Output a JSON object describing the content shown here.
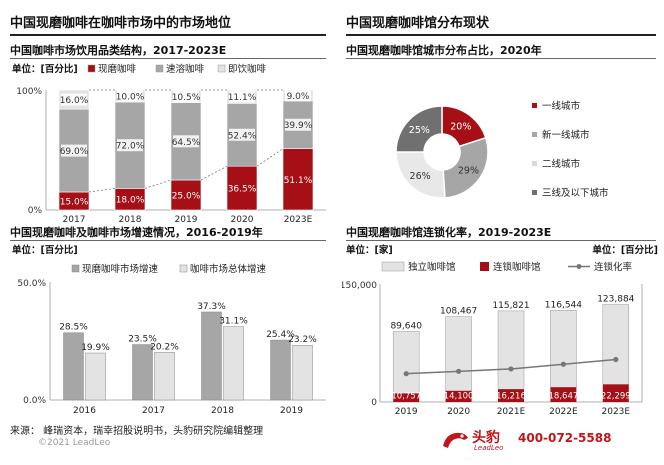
{
  "left": {
    "title": "中国现磨咖啡在咖啡市场中的市场地位",
    "top_subtitle": "中国咖啡市场饮用品类结构，2017-2023E",
    "bottom_subtitle": "中国现磨咖啡及咖啡市场增速情况，2016-2019年"
  },
  "right": {
    "title": "中国现磨咖啡馆分布现状",
    "top_subtitle": "中国现磨咖啡馆城市分布占比，2020年",
    "bottom_subtitle": "中国现磨咖啡馆连锁化率，2019-2023E"
  },
  "footer": {
    "source": "来源： 峰瑞资本，瑞幸招股说明书，头豹研究院编辑整理",
    "copyright": "©2021 LeadLeo",
    "brand_name": "头豹",
    "brand_sub": "LeadLeo",
    "phone": "400-072-5588"
  },
  "colors": {
    "dark_red": "#a50f15",
    "gray": "#a6a6a6",
    "light": "#e3e3e3",
    "dark_gray": "#707070"
  },
  "chart_data": [
    {
      "id": "structure",
      "type": "bar",
      "stacked": true,
      "unit_label": "单位：[百分比]",
      "categories": [
        "2017",
        "2018",
        "2019",
        "2020",
        "2023E"
      ],
      "series": [
        {
          "name": "现磨咖啡",
          "values": [
            15.0,
            18.0,
            25.0,
            36.5,
            51.1
          ],
          "labels": [
            "15.0%",
            "18.0%",
            "25.0%",
            "36.5%",
            "51.1%"
          ],
          "color": "#a50f15"
        },
        {
          "name": "速溶咖啡",
          "values": [
            69.0,
            72.0,
            64.5,
            52.4,
            39.9
          ],
          "labels": [
            "69.0%",
            "72.0%",
            "64.5%",
            "52.4%",
            "39.9%"
          ],
          "color": "#a6a6a6"
        },
        {
          "name": "即饮咖啡",
          "values": [
            16.0,
            10.0,
            10.5,
            11.1,
            9.0
          ],
          "labels": [
            "16.0%",
            "10.0%",
            "10.5%",
            "11.1%",
            "9.0%"
          ],
          "color": "#e3e3e3"
        }
      ],
      "yticks": [
        "0%",
        "100%"
      ],
      "ylim": [
        0,
        100
      ]
    },
    {
      "id": "growth",
      "type": "bar",
      "unit_label": "单位：[百分比]",
      "categories": [
        "2016",
        "2017",
        "2018",
        "2019"
      ],
      "series": [
        {
          "name": "现磨咖啡市场增速",
          "values": [
            28.5,
            23.5,
            37.3,
            25.4
          ],
          "labels": [
            "28.5%",
            "23.5%",
            "37.3%",
            "25.4%"
          ],
          "color": "#a6a6a6"
        },
        {
          "name": "咖啡市场总体增速",
          "values": [
            19.9,
            20.2,
            31.1,
            23.2
          ],
          "labels": [
            "19.9%",
            "20.2%",
            "31.1%",
            "23.2%"
          ],
          "color": "#e3e3e3"
        }
      ],
      "yticks": [
        "0.0%",
        "50.0%"
      ],
      "ylim": [
        0,
        50
      ]
    },
    {
      "id": "city",
      "type": "pie",
      "series": [
        {
          "name": "一线城市",
          "value": 20,
          "label": "20%",
          "color": "#a50f15"
        },
        {
          "name": "新一线城市",
          "value": 29,
          "label": "29%",
          "color": "#a6a6a6"
        },
        {
          "name": "二线城市",
          "value": 26,
          "label": "26%",
          "color": "#e8e8e8"
        },
        {
          "name": "三线及以下城市",
          "value": 25,
          "label": "25%",
          "color": "#707070"
        }
      ]
    },
    {
      "id": "chain",
      "type": "bar",
      "stacked": true,
      "unit_left": "单位：[家]",
      "unit_right": "单位：[百分比]",
      "categories": [
        "2019",
        "2020",
        "2021E",
        "2022E",
        "2023E"
      ],
      "series": [
        {
          "name": "独立咖啡馆",
          "values": [
            78883,
            94367,
            99605,
            97897,
            101585
          ],
          "color": "#e3e3e3"
        },
        {
          "name": "连锁咖啡馆",
          "values": [
            10757,
            14100,
            16216,
            18647,
            22299
          ],
          "labels": [
            "10,757",
            "14,100",
            "16,216",
            "18,647",
            "22,299"
          ],
          "color": "#a50f15"
        },
        {
          "name": "连锁化率",
          "type": "line",
          "values": [
            12.0,
            13.0,
            14.0,
            16.0,
            18.0
          ],
          "color": "#777777"
        }
      ],
      "totals": [
        "89,640",
        "108,467",
        "115,821",
        "116,544",
        "123,884"
      ],
      "total_values": [
        89640,
        108467,
        115821,
        116544,
        123884
      ],
      "yticks": [
        "0",
        "150,000"
      ],
      "ylim": [
        0,
        150000
      ],
      "y2lim": [
        0,
        50
      ]
    }
  ]
}
